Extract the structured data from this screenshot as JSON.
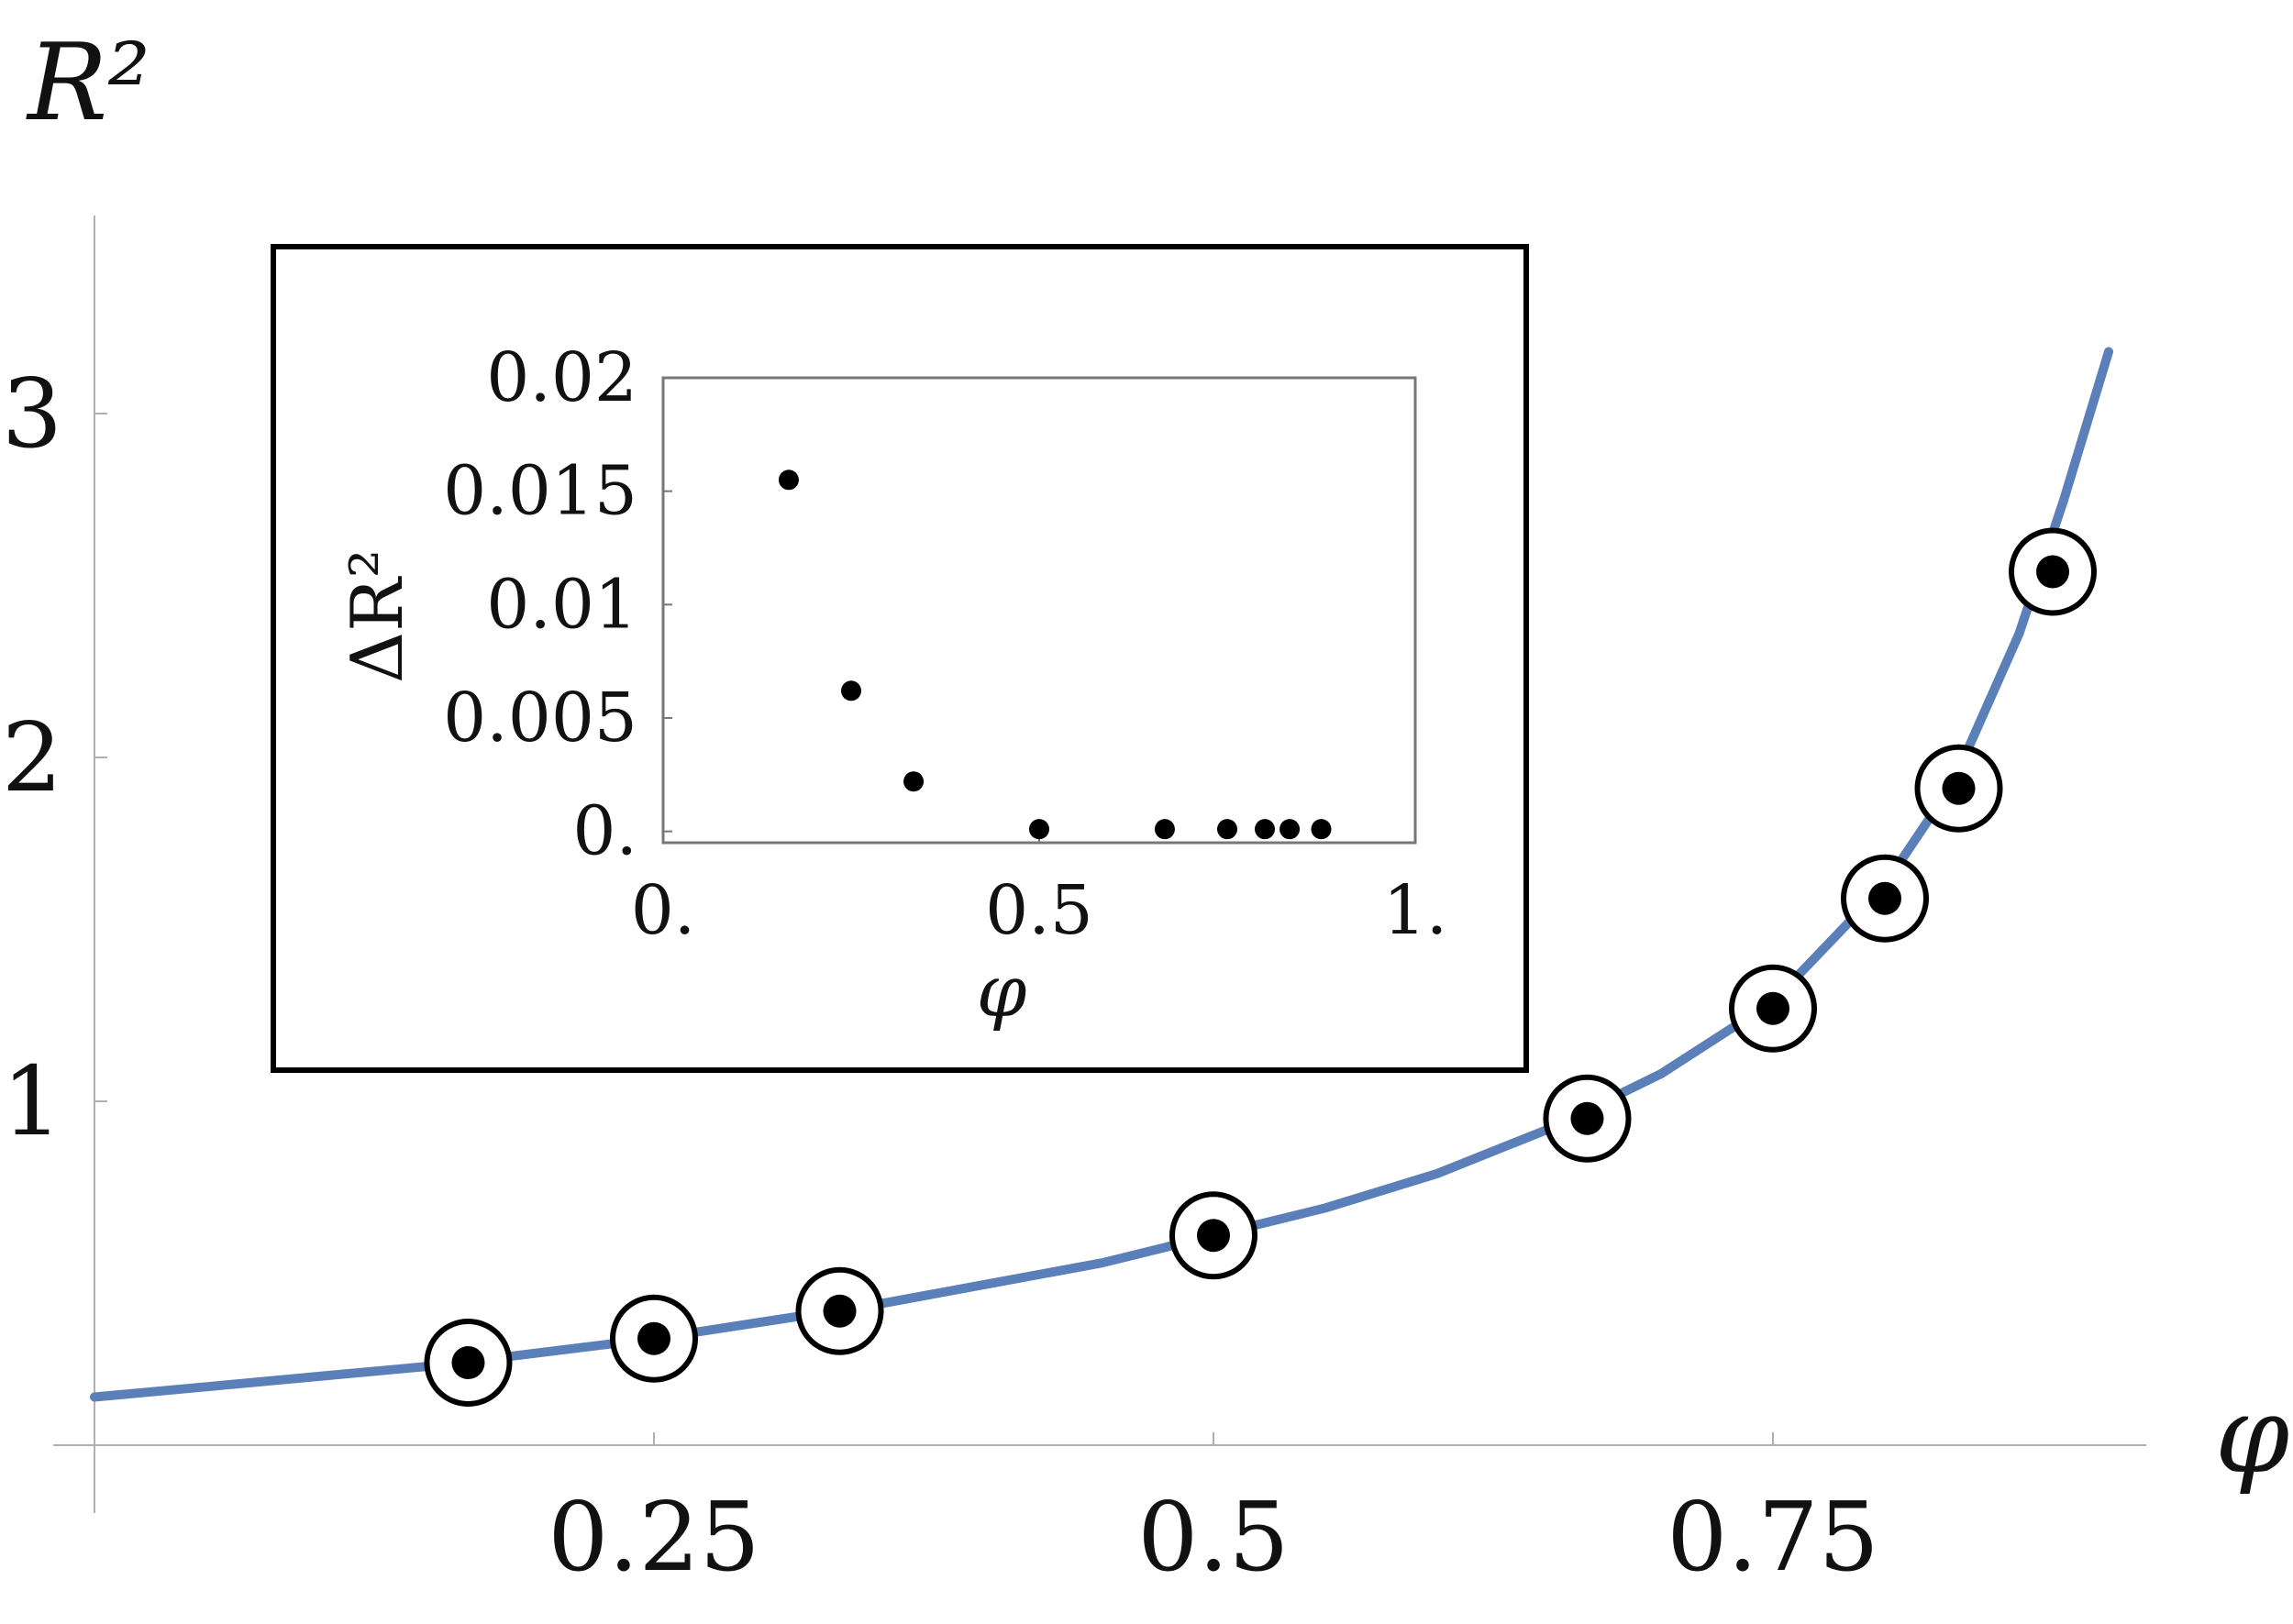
{
  "chart_data": [
    {
      "type": "line",
      "xlabel": "φ",
      "ylabel": "R²",
      "xlim": [
        0,
        0.92
      ],
      "ylim": [
        0,
        3.6
      ],
      "x_ticks": [
        0.25,
        0.5,
        0.75
      ],
      "x_tick_labels": [
        "0.25",
        "0.5",
        "0.75"
      ],
      "y_ticks": [
        1,
        2,
        3
      ],
      "y_tick_labels": [
        "1",
        "2",
        "3"
      ],
      "grid": false,
      "curve_color": "#5a7fb9",
      "curve": {
        "x": [
          0.0,
          0.05,
          0.1,
          0.15,
          0.2,
          0.25,
          0.3,
          0.35,
          0.4,
          0.45,
          0.5,
          0.55,
          0.6,
          0.65,
          0.7,
          0.75,
          0.8,
          0.83,
          0.86,
          0.88,
          0.9
        ],
        "y": [
          0.14,
          0.17,
          0.2,
          0.23,
          0.27,
          0.31,
          0.36,
          0.41,
          0.47,
          0.53,
          0.61,
          0.69,
          0.79,
          0.92,
          1.08,
          1.29,
          1.63,
          1.92,
          2.36,
          2.75,
          3.18
        ]
      },
      "points": {
        "x": [
          0.167,
          0.25,
          0.333,
          0.5,
          0.667,
          0.75,
          0.8,
          0.833,
          0.875
        ],
        "y": [
          0.24,
          0.31,
          0.39,
          0.61,
          0.95,
          1.27,
          1.59,
          1.91,
          2.54
        ]
      }
    },
    {
      "type": "scatter",
      "inset": true,
      "xlabel": "φ",
      "ylabel": "ΔR²",
      "xlim": [
        0,
        1
      ],
      "ylim": [
        -0.0005,
        0.02
      ],
      "x_ticks": [
        0,
        0.5,
        1
      ],
      "x_tick_labels": [
        "0.",
        "0.5",
        "1."
      ],
      "y_ticks": [
        0,
        0.005,
        0.01,
        0.015,
        0.02
      ],
      "y_tick_labels": [
        "0.",
        "0.005",
        "0.01",
        "0.015",
        "0.02"
      ],
      "x": [
        0.167,
        0.25,
        0.333,
        0.5,
        0.667,
        0.75,
        0.8,
        0.833,
        0.875
      ],
      "y": [
        0.0155,
        0.0062,
        0.0022,
        0.0001,
        0.0001,
        0.0001,
        0.0001,
        0.0001,
        0.0001
      ]
    }
  ]
}
